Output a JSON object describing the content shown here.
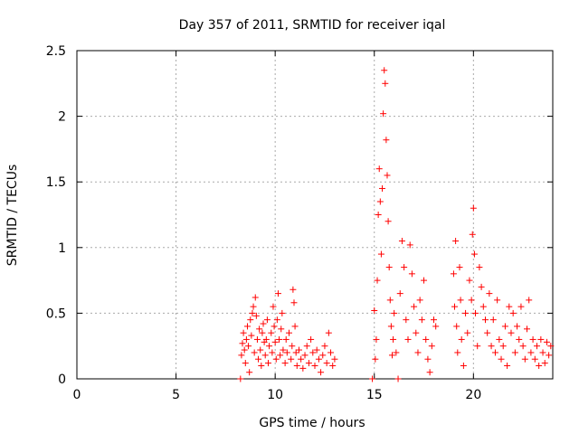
{
  "chart_data": {
    "type": "scatter",
    "title": "Day 357 of 2011, SRMTID for receiver iqal",
    "xlabel": "GPS time / hours",
    "ylabel": "SRMTID / TECUs",
    "xlim": [
      0,
      24
    ],
    "ylim": [
      0,
      2.5
    ],
    "xticks": [
      0,
      5,
      10,
      15,
      20
    ],
    "yticks": [
      0,
      0.5,
      1,
      1.5,
      2,
      2.5
    ],
    "xtick_labels": [
      "0",
      "5",
      "10",
      "15",
      "20"
    ],
    "ytick_labels": [
      "0",
      "0.5",
      "1",
      "1.5",
      "2",
      "2.5"
    ],
    "grid": true,
    "marker": "plus",
    "color": "#ff0000",
    "series": [
      {
        "points": [
          [
            8.25,
            0.0
          ],
          [
            8.3,
            0.18
          ],
          [
            8.35,
            0.27
          ],
          [
            8.4,
            0.35
          ],
          [
            8.45,
            0.22
          ],
          [
            8.5,
            0.12
          ],
          [
            8.55,
            0.3
          ],
          [
            8.6,
            0.4
          ],
          [
            8.65,
            0.25
          ],
          [
            8.7,
            0.05
          ],
          [
            8.75,
            0.45
          ],
          [
            8.8,
            0.33
          ],
          [
            8.85,
            0.5
          ],
          [
            8.9,
            0.55
          ],
          [
            8.95,
            0.2
          ],
          [
            9.0,
            0.62
          ],
          [
            9.05,
            0.48
          ],
          [
            9.1,
            0.3
          ],
          [
            9.15,
            0.15
          ],
          [
            9.2,
            0.38
          ],
          [
            9.25,
            0.22
          ],
          [
            9.3,
            0.1
          ],
          [
            9.35,
            0.35
          ],
          [
            9.4,
            0.42
          ],
          [
            9.45,
            0.28
          ],
          [
            9.5,
            0.18
          ],
          [
            9.55,
            0.3
          ],
          [
            9.6,
            0.45
          ],
          [
            9.65,
            0.12
          ],
          [
            9.7,
            0.25
          ],
          [
            9.8,
            0.35
          ],
          [
            9.85,
            0.2
          ],
          [
            9.9,
            0.55
          ],
          [
            9.95,
            0.4
          ],
          [
            10.0,
            0.28
          ],
          [
            10.05,
            0.15
          ],
          [
            10.1,
            0.45
          ],
          [
            10.15,
            0.65
          ],
          [
            10.2,
            0.3
          ],
          [
            10.25,
            0.18
          ],
          [
            10.3,
            0.38
          ],
          [
            10.35,
            0.5
          ],
          [
            10.4,
            0.22
          ],
          [
            10.5,
            0.12
          ],
          [
            10.55,
            0.3
          ],
          [
            10.6,
            0.2
          ],
          [
            10.7,
            0.35
          ],
          [
            10.8,
            0.15
          ],
          [
            10.85,
            0.25
          ],
          [
            10.9,
            0.68
          ],
          [
            10.95,
            0.58
          ],
          [
            11.0,
            0.4
          ],
          [
            11.05,
            0.2
          ],
          [
            11.1,
            0.1
          ],
          [
            11.2,
            0.22
          ],
          [
            11.3,
            0.15
          ],
          [
            11.4,
            0.08
          ],
          [
            11.5,
            0.18
          ],
          [
            11.6,
            0.25
          ],
          [
            11.7,
            0.12
          ],
          [
            11.8,
            0.3
          ],
          [
            11.9,
            0.2
          ],
          [
            12.0,
            0.1
          ],
          [
            12.1,
            0.22
          ],
          [
            12.2,
            0.15
          ],
          [
            12.3,
            0.05
          ],
          [
            12.4,
            0.18
          ],
          [
            12.5,
            0.25
          ],
          [
            12.6,
            0.12
          ],
          [
            12.7,
            0.35
          ],
          [
            12.8,
            0.2
          ],
          [
            12.9,
            0.1
          ],
          [
            13.0,
            0.15
          ]
        ]
      },
      {
        "points": [
          [
            14.9,
            0.0
          ],
          [
            15.0,
            0.52
          ],
          [
            15.05,
            0.15
          ],
          [
            15.1,
            0.3
          ],
          [
            15.15,
            0.75
          ],
          [
            15.2,
            1.25
          ],
          [
            15.25,
            1.6
          ],
          [
            15.3,
            1.35
          ],
          [
            15.35,
            0.95
          ],
          [
            15.4,
            1.45
          ],
          [
            15.45,
            2.02
          ],
          [
            15.5,
            2.35
          ],
          [
            15.55,
            2.25
          ],
          [
            15.6,
            1.82
          ],
          [
            15.65,
            1.55
          ],
          [
            15.7,
            1.2
          ],
          [
            15.75,
            0.85
          ],
          [
            15.8,
            0.6
          ],
          [
            15.85,
            0.4
          ],
          [
            15.9,
            0.18
          ],
          [
            15.95,
            0.3
          ],
          [
            16.0,
            0.5
          ],
          [
            16.1,
            0.2
          ],
          [
            16.2,
            0.0
          ],
          [
            16.3,
            0.65
          ],
          [
            16.4,
            1.05
          ],
          [
            16.5,
            0.85
          ],
          [
            16.6,
            0.45
          ],
          [
            16.7,
            0.3
          ],
          [
            16.8,
            1.02
          ],
          [
            16.9,
            0.8
          ],
          [
            17.0,
            0.55
          ],
          [
            17.1,
            0.35
          ],
          [
            17.2,
            0.2
          ],
          [
            17.3,
            0.6
          ],
          [
            17.4,
            0.45
          ],
          [
            17.5,
            0.75
          ],
          [
            17.6,
            0.3
          ],
          [
            17.7,
            0.15
          ],
          [
            17.8,
            0.05
          ],
          [
            17.9,
            0.25
          ],
          [
            18.0,
            0.45
          ],
          [
            18.1,
            0.4
          ]
        ]
      },
      {
        "points": [
          [
            19.0,
            0.8
          ],
          [
            19.05,
            0.55
          ],
          [
            19.1,
            1.05
          ],
          [
            19.15,
            0.4
          ],
          [
            19.2,
            0.2
          ],
          [
            19.3,
            0.85
          ],
          [
            19.35,
            0.6
          ],
          [
            19.4,
            0.3
          ],
          [
            19.5,
            0.1
          ],
          [
            19.6,
            0.5
          ],
          [
            19.7,
            0.35
          ],
          [
            19.8,
            0.75
          ],
          [
            19.9,
            0.6
          ],
          [
            19.95,
            1.1
          ],
          [
            20.0,
            1.3
          ],
          [
            20.05,
            0.95
          ],
          [
            20.1,
            0.5
          ],
          [
            20.2,
            0.25
          ],
          [
            20.3,
            0.85
          ],
          [
            20.4,
            0.7
          ],
          [
            20.5,
            0.55
          ],
          [
            20.6,
            0.45
          ],
          [
            20.7,
            0.35
          ],
          [
            20.8,
            0.65
          ],
          [
            20.9,
            0.25
          ],
          [
            21.0,
            0.45
          ],
          [
            21.1,
            0.2
          ],
          [
            21.2,
            0.6
          ],
          [
            21.3,
            0.3
          ],
          [
            21.4,
            0.15
          ],
          [
            21.5,
            0.25
          ],
          [
            21.6,
            0.4
          ],
          [
            21.7,
            0.1
          ],
          [
            21.8,
            0.55
          ],
          [
            21.9,
            0.35
          ],
          [
            22.0,
            0.5
          ],
          [
            22.1,
            0.2
          ],
          [
            22.2,
            0.4
          ],
          [
            22.3,
            0.3
          ],
          [
            22.4,
            0.55
          ],
          [
            22.5,
            0.25
          ],
          [
            22.6,
            0.15
          ],
          [
            22.7,
            0.38
          ],
          [
            22.8,
            0.6
          ],
          [
            22.9,
            0.2
          ],
          [
            23.0,
            0.3
          ],
          [
            23.1,
            0.15
          ],
          [
            23.2,
            0.25
          ],
          [
            23.3,
            0.1
          ],
          [
            23.4,
            0.3
          ],
          [
            23.5,
            0.2
          ],
          [
            23.6,
            0.12
          ],
          [
            23.7,
            0.28
          ],
          [
            23.8,
            0.18
          ],
          [
            23.9,
            0.25
          ]
        ]
      }
    ]
  }
}
